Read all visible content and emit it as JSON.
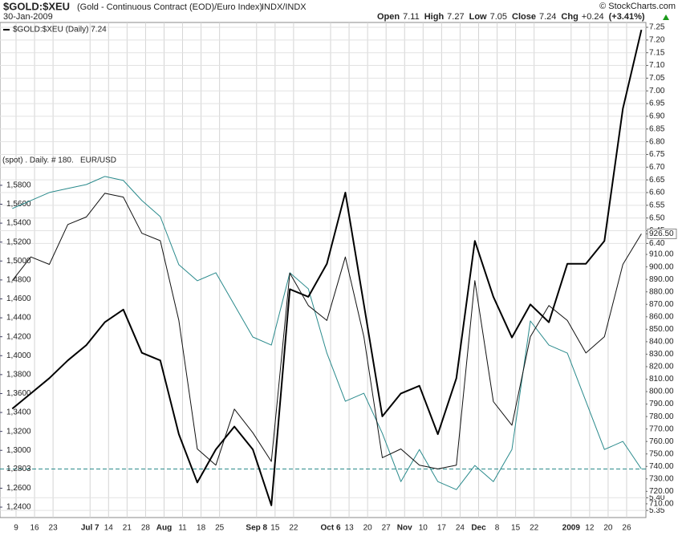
{
  "chart_data": {
    "type": "line",
    "title": "$GOLD:$XEU",
    "subtitle": "(Gold - Continuous Contract (EOD)/Euro Index)",
    "exchange": "INDX/INDX",
    "credit": "© StockCharts.com",
    "date": "30-Jan-2009",
    "quote": [
      {
        "label": "Open",
        "value": 7.11
      },
      {
        "label": "High",
        "value": 7.27
      },
      {
        "label": "Low",
        "value": 7.05
      },
      {
        "label": "Close",
        "value": 7.24
      },
      {
        "label": "Chg",
        "value": "+0.24"
      },
      {
        "label": "(+3.41%)"
      }
    ],
    "categories": [
      null,
      "9",
      "16",
      "23",
      null,
      "Jul 7",
      "14",
      "21",
      "28",
      "Aug",
      "11",
      "18",
      "25",
      null,
      "Sep 8",
      "15",
      "22",
      null,
      "Oct 6",
      "13",
      "20",
      "27",
      "Nov",
      "10",
      "17",
      "24",
      "Dec",
      "8",
      "15",
      "22",
      null,
      "2009",
      "12",
      "20",
      "26"
    ],
    "series": [
      {
        "name": "$GOLD:$XEU (Daily) 7.24",
        "color": "#000000",
        "axis": "y",
        "values": [
          5.75,
          5.81,
          5.87,
          5.94,
          6.0,
          6.09,
          6.14,
          5.97,
          5.94,
          5.65,
          5.46,
          5.59,
          5.68,
          5.59,
          5.37,
          6.22,
          6.19,
          6.32,
          6.6,
          6.16,
          5.72,
          5.81,
          5.84,
          5.65,
          5.87,
          6.41,
          6.19,
          6.03,
          6.16,
          6.09,
          6.32,
          6.32,
          6.41,
          6.93,
          7.24
        ]
      },
      {
        "name": "(spot) . Daily. # 180.",
        "color": "#111111",
        "axis": "y2",
        "values": [
          889,
          908,
          902,
          934,
          940,
          959,
          956,
          927,
          921,
          857,
          754,
          741,
          786,
          767,
          744,
          895,
          869,
          857,
          908,
          844,
          747,
          754,
          741,
          738,
          741,
          889,
          792,
          773,
          844,
          869,
          857,
          831,
          844,
          902,
          926.5
        ]
      },
      {
        "name": "EUR/USD",
        "color": "#2a8a8c",
        "axis": "y3",
        "values": [
          1.5554,
          1.5639,
          1.5724,
          1.5766,
          1.5808,
          1.5893,
          1.5851,
          1.5639,
          1.5469,
          1.4961,
          1.4791,
          1.4876,
          1.4536,
          1.4197,
          1.4112,
          1.4876,
          1.4706,
          1.4027,
          1.3518,
          1.3603,
          1.3179,
          1.267,
          1.3009,
          1.267,
          1.2585,
          1.284,
          1.267,
          1.3009,
          1.4367,
          1.4112,
          1.4027,
          1.3518,
          1.3009,
          1.3094,
          1.2803
        ]
      }
    ],
    "ylim": [
      5.322,
      7.269
    ],
    "yticks": [
      {
        "value": 7.25,
        "label": "7.25"
      },
      {
        "value": 7.2,
        "label": "7.20"
      },
      {
        "value": 7.15,
        "label": "7.15"
      },
      {
        "value": 7.1,
        "label": "7.10"
      },
      {
        "value": 7.05,
        "label": "7.05"
      },
      {
        "value": 7.0,
        "label": "7.00"
      },
      {
        "value": 6.95,
        "label": "6.95"
      },
      {
        "value": 6.9,
        "label": "6.90"
      },
      {
        "value": 6.85,
        "label": "6.85"
      },
      {
        "value": 6.8,
        "label": "6.80"
      },
      {
        "value": 6.75,
        "label": "6.75"
      },
      {
        "value": 6.7,
        "label": "6.70"
      },
      {
        "value": 6.65,
        "label": "6.65"
      },
      {
        "value": 6.6,
        "label": "6.60"
      },
      {
        "value": 6.55,
        "label": "6.55"
      },
      {
        "value": 6.5,
        "label": "6.50"
      },
      {
        "value": 6.45,
        "label": "6.45"
      },
      {
        "value": 6.4,
        "label": "6.40"
      },
      {
        "value": 5.4,
        "label": "5.40"
      },
      {
        "value": 5.35,
        "label": "5.35"
      }
    ],
    "y2lim": [
      699,
      1096
    ],
    "y2ticks": [
      {
        "value": 926.5,
        "label": "926.50"
      },
      {
        "value": 910,
        "label": "910.00"
      },
      {
        "value": 900,
        "label": "900.00"
      },
      {
        "value": 890,
        "label": "890.00"
      },
      {
        "value": 880,
        "label": "880.00"
      },
      {
        "value": 870,
        "label": "870.00"
      },
      {
        "value": 860,
        "label": "860.00"
      },
      {
        "value": 850,
        "label": "850.00"
      },
      {
        "value": 840,
        "label": "840.00"
      },
      {
        "value": 830,
        "label": "830.00"
      },
      {
        "value": 820,
        "label": "820.00"
      },
      {
        "value": 810,
        "label": "810.00"
      },
      {
        "value": 800,
        "label": "800.00"
      },
      {
        "value": 790,
        "label": "790.00"
      },
      {
        "value": 780,
        "label": "780.00"
      },
      {
        "value": 770,
        "label": "770.00"
      },
      {
        "value": 760,
        "label": "760.00"
      },
      {
        "value": 750,
        "label": "750.00"
      },
      {
        "value": 740,
        "label": "740.00"
      },
      {
        "value": 730,
        "label": "730.00"
      },
      {
        "value": 720,
        "label": "720.00"
      },
      {
        "value": 710,
        "label": "710.00"
      }
    ],
    "y3lim": [
      1.229,
      1.752
    ],
    "y3ticks": [
      {
        "value": 1.58,
        "label": "1,5800"
      },
      {
        "value": 1.56,
        "label": "1,5600"
      },
      {
        "value": 1.54,
        "label": "1,5400"
      },
      {
        "value": 1.52,
        "label": "1,5200"
      },
      {
        "value": 1.5,
        "label": "1,5000"
      },
      {
        "value": 1.48,
        "label": "1,4800"
      },
      {
        "value": 1.46,
        "label": "1,4600"
      },
      {
        "value": 1.44,
        "label": "1,4400"
      },
      {
        "value": 1.42,
        "label": "1,4200"
      },
      {
        "value": 1.4,
        "label": "1,4000"
      },
      {
        "value": 1.38,
        "label": "1,3800"
      },
      {
        "value": 1.36,
        "label": "1,3600"
      },
      {
        "value": 1.34,
        "label": "1,3400"
      },
      {
        "value": 1.32,
        "label": "1,3200"
      },
      {
        "value": 1.3,
        "label": "1,3000"
      },
      {
        "value": 1.26,
        "label": "1,2600"
      },
      {
        "value": 1.24,
        "label": "1,2400"
      }
    ],
    "y3_reference": {
      "value": 1.2803,
      "label": "1,2803"
    },
    "grid": true
  }
}
